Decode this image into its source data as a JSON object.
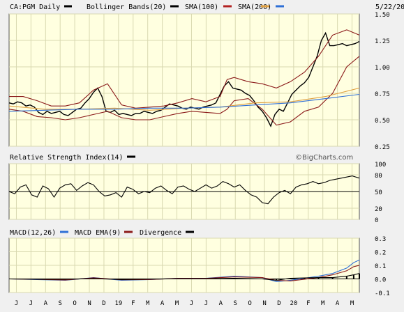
{
  "chart_data": [
    {
      "type": "line",
      "panel": "price",
      "title": "CA:PGM Daily",
      "date": "5/22/20",
      "grid": true,
      "ylim": [
        0.25,
        1.5
      ],
      "yticks": [
        "1.50",
        "1.25",
        "1.00",
        "0.75",
        "0.50",
        "0.25"
      ],
      "x_months": [
        "J",
        "J",
        "A",
        "S",
        "O",
        "N",
        "D",
        "19",
        "F",
        "M",
        "A",
        "M",
        "J",
        "J",
        "A",
        "S",
        "O",
        "N",
        "D",
        "20",
        "F",
        "M",
        "A",
        "M"
      ],
      "legend": [
        {
          "name": "CA:PGM Daily",
          "color": "#000000"
        },
        {
          "name": "Bollinger Bands(20)",
          "color": "#000000"
        },
        {
          "name": "SMA(100)",
          "color": "#b22222"
        },
        {
          "name": "SMA(200)",
          "color": "#e0a040"
        },
        {
          "name": "",
          "color": "#2e6fd6"
        }
      ],
      "series": [
        {
          "name": "CA:PGM Daily",
          "color": "#000000",
          "x": [
            0,
            6,
            12,
            18,
            24,
            30,
            36,
            42,
            48,
            54,
            60,
            66,
            72,
            78,
            84,
            90,
            96,
            102,
            108,
            114,
            120,
            126,
            132,
            138,
            144,
            150,
            156,
            162,
            168,
            174,
            180,
            186,
            192,
            198,
            204,
            210,
            216,
            222,
            228,
            234,
            240,
            246,
            252,
            258,
            264,
            270,
            276,
            282,
            288,
            294,
            300,
            306,
            312,
            318,
            324,
            330,
            336,
            342,
            348,
            354,
            360,
            366,
            372,
            378,
            384,
            390,
            396,
            402,
            408,
            414,
            420,
            426,
            432,
            438,
            444,
            450,
            456,
            462,
            468,
            474,
            480,
            486,
            492,
            498
          ],
          "values": [
            0.66,
            0.65,
            0.67,
            0.66,
            0.63,
            0.64,
            0.62,
            0.57,
            0.55,
            0.58,
            0.56,
            0.57,
            0.58,
            0.55,
            0.54,
            0.57,
            0.6,
            0.61,
            0.66,
            0.7,
            0.76,
            0.8,
            0.72,
            0.58,
            0.57,
            0.59,
            0.55,
            0.56,
            0.55,
            0.54,
            0.56,
            0.56,
            0.58,
            0.57,
            0.56,
            0.58,
            0.59,
            0.62,
            0.65,
            0.64,
            0.63,
            0.61,
            0.6,
            0.62,
            0.61,
            0.6,
            0.62,
            0.63,
            0.64,
            0.66,
            0.74,
            0.82,
            0.86,
            0.8,
            0.79,
            0.78,
            0.75,
            0.73,
            0.68,
            0.62,
            0.58,
            0.52,
            0.44,
            0.55,
            0.6,
            0.58,
            0.66,
            0.74,
            0.78,
            0.82,
            0.85,
            0.9,
            1.0,
            1.1,
            1.25,
            1.32,
            1.2,
            1.2,
            1.21,
            1.22,
            1.2,
            1.21,
            1.22,
            1.24
          ]
        },
        {
          "name": "Bollinger upper",
          "color": "#8b1a1a",
          "x": [
            0,
            20,
            40,
            60,
            80,
            100,
            120,
            140,
            160,
            180,
            200,
            220,
            240,
            260,
            280,
            300,
            310,
            320,
            340,
            360,
            380,
            400,
            420,
            440,
            460,
            480,
            498
          ],
          "values": [
            0.72,
            0.72,
            0.68,
            0.63,
            0.63,
            0.66,
            0.78,
            0.84,
            0.64,
            0.61,
            0.62,
            0.63,
            0.66,
            0.7,
            0.67,
            0.72,
            0.88,
            0.9,
            0.86,
            0.84,
            0.8,
            0.86,
            0.95,
            1.1,
            1.3,
            1.35,
            1.3
          ]
        },
        {
          "name": "Bollinger lower",
          "color": "#8b1a1a",
          "x": [
            0,
            20,
            40,
            60,
            80,
            100,
            120,
            140,
            160,
            180,
            200,
            220,
            240,
            260,
            280,
            300,
            310,
            320,
            340,
            360,
            380,
            400,
            420,
            440,
            460,
            480,
            498
          ],
          "values": [
            0.6,
            0.58,
            0.53,
            0.52,
            0.5,
            0.52,
            0.55,
            0.58,
            0.52,
            0.5,
            0.5,
            0.53,
            0.56,
            0.58,
            0.57,
            0.56,
            0.6,
            0.68,
            0.7,
            0.6,
            0.45,
            0.48,
            0.58,
            0.62,
            0.75,
            1.0,
            1.1
          ]
        },
        {
          "name": "SMA(100)",
          "color": "#e0a040",
          "x": [
            0,
            50,
            100,
            150,
            200,
            250,
            300,
            350,
            400,
            450,
            498
          ],
          "values": [
            0.63,
            0.6,
            0.6,
            0.61,
            0.59,
            0.61,
            0.62,
            0.66,
            0.67,
            0.72,
            0.8
          ]
        },
        {
          "name": "SMA(200)",
          "color": "#2e6fd6",
          "x": [
            0,
            50,
            100,
            150,
            200,
            250,
            300,
            350,
            400,
            450,
            498
          ],
          "values": [
            0.58,
            0.59,
            0.6,
            0.6,
            0.61,
            0.61,
            0.62,
            0.64,
            0.66,
            0.7,
            0.74
          ]
        }
      ]
    },
    {
      "type": "line",
      "panel": "rsi",
      "title": "Relative Strength Index(14)",
      "brand": "©BigCharts.com",
      "ylim": [
        0,
        100
      ],
      "yticks": [
        "100",
        "80",
        "50",
        "20",
        "0"
      ],
      "series": [
        {
          "name": "Relative Strength Index(14)",
          "color": "#000000",
          "x": [
            0,
            8,
            16,
            24,
            32,
            40,
            48,
            56,
            64,
            72,
            80,
            88,
            96,
            104,
            112,
            120,
            128,
            136,
            144,
            152,
            160,
            168,
            176,
            184,
            192,
            200,
            208,
            216,
            224,
            232,
            240,
            248,
            256,
            264,
            272,
            280,
            288,
            296,
            304,
            312,
            320,
            328,
            336,
            344,
            352,
            360,
            368,
            376,
            384,
            392,
            400,
            408,
            416,
            424,
            432,
            440,
            448,
            456,
            464,
            472,
            480,
            488,
            498
          ],
          "values": [
            50,
            46,
            58,
            62,
            44,
            40,
            60,
            55,
            40,
            56,
            62,
            64,
            52,
            60,
            66,
            62,
            50,
            42,
            44,
            48,
            40,
            58,
            54,
            46,
            50,
            48,
            56,
            60,
            52,
            46,
            58,
            60,
            54,
            50,
            56,
            62,
            56,
            60,
            68,
            64,
            58,
            62,
            52,
            44,
            40,
            30,
            28,
            40,
            48,
            52,
            46,
            58,
            62,
            64,
            68,
            64,
            66,
            70,
            72,
            74,
            76,
            78,
            74
          ]
        }
      ]
    },
    {
      "type": "line",
      "panel": "macd",
      "title": "MACD(12,26)",
      "ylim": [
        -0.1,
        0.3
      ],
      "yticks": [
        "0.3",
        "0.2",
        "0.1",
        "0.0",
        "-0.1"
      ],
      "legend": [
        {
          "name": "MACD(12,26)",
          "color": "#000000"
        },
        {
          "name": "MACD EMA(9)",
          "color": "#2e6fd6"
        },
        {
          "name": "Divergence",
          "color": "#8b1a1a"
        },
        {
          "name": "",
          "color": "#000000"
        }
      ],
      "series": [
        {
          "name": "MACD(12,26)",
          "color": "#2e6fd6",
          "x": [
            0,
            40,
            80,
            120,
            160,
            200,
            240,
            280,
            320,
            360,
            380,
            400,
            420,
            440,
            460,
            480,
            490,
            498
          ],
          "values": [
            0.0,
            -0.005,
            -0.01,
            0.01,
            -0.01,
            -0.005,
            0.005,
            0.005,
            0.02,
            0.01,
            -0.02,
            -0.01,
            0.005,
            0.02,
            0.04,
            0.08,
            0.12,
            0.14
          ]
        },
        {
          "name": "MACD EMA(9)",
          "color": "#8b1a1a",
          "x": [
            0,
            40,
            80,
            120,
            160,
            200,
            240,
            280,
            320,
            360,
            380,
            400,
            420,
            440,
            460,
            480,
            490,
            498
          ],
          "values": [
            0.0,
            -0.003,
            -0.008,
            0.008,
            -0.006,
            -0.004,
            0.004,
            0.004,
            0.015,
            0.01,
            -0.01,
            -0.015,
            -0.002,
            0.01,
            0.03,
            0.06,
            0.09,
            0.1
          ]
        },
        {
          "name": "Divergence",
          "color": "#000000",
          "x": [
            0,
            40,
            80,
            120,
            160,
            200,
            240,
            280,
            320,
            360,
            380,
            400,
            420,
            440,
            460,
            480,
            490,
            498
          ],
          "values": [
            0.0,
            -0.002,
            -0.002,
            0.002,
            -0.004,
            -0.001,
            0.001,
            0.001,
            0.005,
            0.0,
            -0.01,
            0.005,
            0.007,
            0.01,
            0.01,
            0.02,
            0.03,
            0.04
          ]
        }
      ]
    }
  ]
}
